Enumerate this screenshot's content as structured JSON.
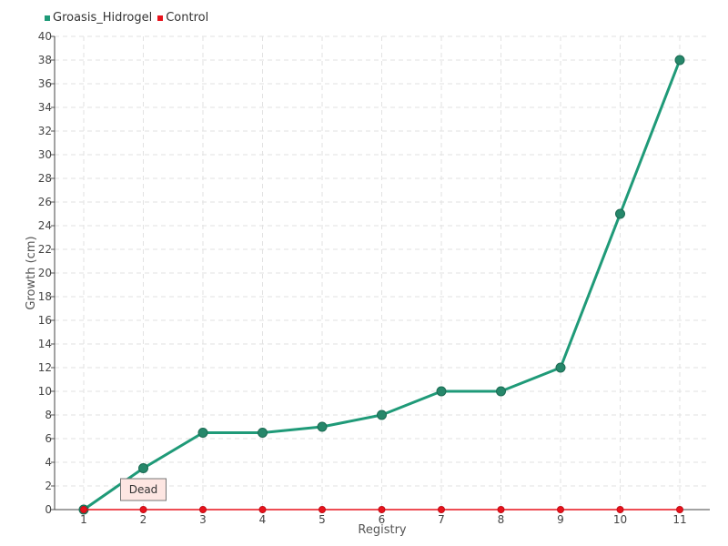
{
  "chart_data": {
    "type": "line",
    "categories": [
      "1",
      "2",
      "3",
      "4",
      "5",
      "6",
      "7",
      "8",
      "9",
      "10",
      "11"
    ],
    "series": [
      {
        "name": "Groasis_Hidrogel",
        "color": "#1f9a78",
        "values": [
          0,
          3.5,
          6.5,
          6.5,
          7,
          8,
          10,
          10,
          12,
          25,
          38
        ]
      },
      {
        "name": "Control",
        "color": "#e8121c",
        "values": [
          0,
          0,
          0,
          0,
          0,
          0,
          0,
          0,
          0,
          0,
          0
        ]
      }
    ],
    "xlabel": "Registry",
    "ylabel": "Growth (cm)",
    "ylim": [
      0,
      40
    ],
    "ytick_step": 2,
    "grid": true,
    "legend_position": "top-left",
    "annotation": {
      "text": "Dead",
      "category": "2",
      "series": "Control"
    }
  }
}
